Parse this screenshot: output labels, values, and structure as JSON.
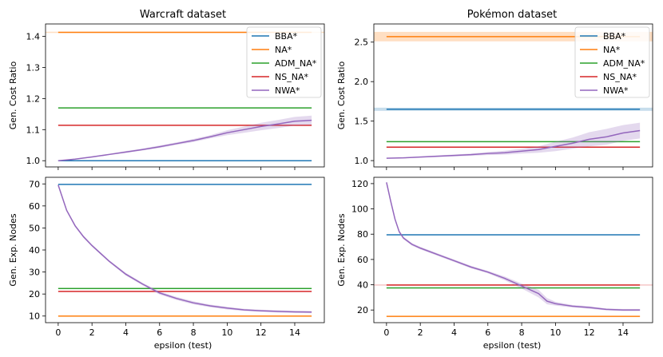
{
  "figure": {
    "left_title": "Warcraft dataset",
    "right_title": "Pokémon dataset",
    "xlabel": "epsilon (test)"
  },
  "series_colors": {
    "BBA*": "#1f77b4",
    "NA*": "#ff7f0e",
    "ADM_NA*": "#2ca02c",
    "NS_NA*": "#d62728",
    "NWA*": "#9467bd"
  },
  "chart_data": [
    {
      "id": "warcraft-cost",
      "type": "line",
      "title": "Warcraft dataset",
      "xlabel": "",
      "ylabel": "Gen. Cost Ratio",
      "xlim": [
        -0.75,
        15.75
      ],
      "ylim": [
        0.98,
        1.44
      ],
      "xticks": [
        0,
        2,
        4,
        6,
        8,
        10,
        12,
        14
      ],
      "xtick_labels_visible": false,
      "yticks": [
        1.0,
        1.1,
        1.2,
        1.3,
        1.4
      ],
      "ytick_labels": [
        "1.0",
        "1.1",
        "1.2",
        "1.3",
        "1.4"
      ],
      "legend": {
        "position": "top-right",
        "entries": [
          "BBA*",
          "NA*",
          "ADM_NA*",
          "NS_NA*",
          "NWA*"
        ]
      },
      "series": [
        {
          "name": "BBA*",
          "type": "constant",
          "value": 1.0,
          "band": 0.0
        },
        {
          "name": "NA*",
          "type": "constant",
          "value": 1.413,
          "band": 0.002
        },
        {
          "name": "ADM_NA*",
          "type": "constant",
          "value": 1.17,
          "band": 0.0
        },
        {
          "name": "NS_NA*",
          "type": "constant",
          "value": 1.114,
          "band": 0.0
        },
        {
          "name": "NWA*",
          "type": "curve",
          "x": [
            0,
            1,
            2,
            3,
            4,
            5,
            6,
            7,
            8,
            9,
            10,
            11,
            12,
            13,
            14,
            15
          ],
          "values": [
            1.0,
            1.005,
            1.012,
            1.02,
            1.028,
            1.036,
            1.045,
            1.055,
            1.065,
            1.077,
            1.09,
            1.1,
            1.11,
            1.118,
            1.127,
            1.13
          ],
          "band": [
            0.0,
            0.001,
            0.002,
            0.002,
            0.003,
            0.003,
            0.004,
            0.004,
            0.005,
            0.005,
            0.008,
            0.01,
            0.012,
            0.013,
            0.014,
            0.015
          ]
        }
      ]
    },
    {
      "id": "pokemon-cost",
      "type": "line",
      "title": "Pokémon dataset",
      "xlabel": "",
      "ylabel": "Gen. Cost Ratio",
      "xlim": [
        -0.75,
        15.75
      ],
      "ylim": [
        0.92,
        2.73
      ],
      "xticks": [
        0,
        2,
        4,
        6,
        8,
        10,
        12,
        14
      ],
      "xtick_labels_visible": false,
      "yticks": [
        1.0,
        1.5,
        2.0,
        2.5
      ],
      "ytick_labels": [
        "1.0",
        "1.5",
        "2.0",
        "2.5"
      ],
      "legend": {
        "position": "top-right",
        "entries": [
          "BBA*",
          "NA*",
          "ADM_NA*",
          "NS_NA*",
          "NWA*"
        ]
      },
      "series": [
        {
          "name": "BBA*",
          "type": "constant",
          "value": 1.65,
          "band": 0.02
        },
        {
          "name": "NA*",
          "type": "constant",
          "value": 2.57,
          "band": 0.06
        },
        {
          "name": "ADM_NA*",
          "type": "constant",
          "value": 1.24,
          "band": 0.0
        },
        {
          "name": "NS_NA*",
          "type": "constant",
          "value": 1.17,
          "band": 0.0
        },
        {
          "name": "NWA*",
          "type": "curve",
          "x": [
            0,
            1,
            2,
            3,
            4,
            5,
            6,
            7,
            8,
            9,
            10,
            11,
            12,
            13,
            14,
            15
          ],
          "values": [
            1.03,
            1.035,
            1.045,
            1.055,
            1.065,
            1.075,
            1.09,
            1.1,
            1.12,
            1.14,
            1.18,
            1.22,
            1.27,
            1.3,
            1.35,
            1.38
          ],
          "band": [
            0.0,
            0.005,
            0.008,
            0.01,
            0.012,
            0.015,
            0.02,
            0.025,
            0.03,
            0.04,
            0.06,
            0.07,
            0.09,
            0.1,
            0.1,
            0.1
          ]
        }
      ]
    },
    {
      "id": "warcraft-nodes",
      "type": "line",
      "title": "",
      "xlabel": "epsilon (test)",
      "ylabel": "Gen. Exp. Nodes",
      "xlim": [
        -0.75,
        15.75
      ],
      "ylim": [
        7,
        73
      ],
      "xticks": [
        0,
        2,
        4,
        6,
        8,
        10,
        12,
        14
      ],
      "xtick_labels_visible": true,
      "xtick_labels": [
        "0",
        "2",
        "4",
        "6",
        "8",
        "10",
        "12",
        "14"
      ],
      "yticks": [
        10,
        20,
        30,
        40,
        50,
        60,
        70
      ],
      "ytick_labels": [
        "10",
        "20",
        "30",
        "40",
        "50",
        "60",
        "70"
      ],
      "series": [
        {
          "name": "BBA*",
          "type": "constant",
          "value": 69.8,
          "band": 0.0
        },
        {
          "name": "NA*",
          "type": "constant",
          "value": 10.0,
          "band": 0.0
        },
        {
          "name": "ADM_NA*",
          "type": "constant",
          "value": 22.5,
          "band": 0.0
        },
        {
          "name": "NS_NA*",
          "type": "constant",
          "value": 21.2,
          "band": 0.0
        },
        {
          "name": "NWA*",
          "type": "curve",
          "x": [
            0,
            0.5,
            1,
            1.5,
            2,
            3,
            4,
            5,
            6,
            7,
            8,
            9,
            10,
            11,
            12,
            13,
            14,
            15
          ],
          "values": [
            69.5,
            58,
            51,
            46,
            42,
            35,
            29,
            24.5,
            20.5,
            18,
            16,
            14.6,
            13.6,
            12.8,
            12.4,
            12.1,
            11.9,
            11.8
          ],
          "band": [
            0.3,
            0.4,
            0.5,
            0.5,
            0.5,
            0.5,
            0.6,
            0.6,
            0.7,
            0.7,
            0.7,
            0.6,
            0.6,
            0.5,
            0.5,
            0.5,
            0.5,
            0.5
          ]
        }
      ]
    },
    {
      "id": "pokemon-nodes",
      "type": "line",
      "title": "",
      "xlabel": "epsilon (test)",
      "ylabel": "Gen. Exp. Nodes",
      "xlim": [
        -0.75,
        15.75
      ],
      "ylim": [
        10,
        125
      ],
      "xticks": [
        0,
        2,
        4,
        6,
        8,
        10,
        12,
        14
      ],
      "xtick_labels_visible": true,
      "xtick_labels": [
        "0",
        "2",
        "4",
        "6",
        "8",
        "10",
        "12",
        "14"
      ],
      "yticks": [
        20,
        40,
        60,
        80,
        100,
        120
      ],
      "ytick_labels": [
        "20",
        "40",
        "60",
        "80",
        "100",
        "120"
      ],
      "series": [
        {
          "name": "BBA*",
          "type": "constant",
          "value": 79.5,
          "band": 0.0
        },
        {
          "name": "NA*",
          "type": "constant",
          "value": 15.0,
          "band": 0.0
        },
        {
          "name": "ADM_NA*",
          "type": "constant",
          "value": 37.5,
          "band": 0.0
        },
        {
          "name": "NS_NA*",
          "type": "constant",
          "value": 39.8,
          "band": 0.5
        },
        {
          "name": "NWA*",
          "type": "curve",
          "x": [
            0,
            0.25,
            0.5,
            0.75,
            1,
            1.5,
            2,
            3,
            4,
            5,
            6,
            7,
            8,
            9,
            9.5,
            10,
            11,
            12,
            13,
            14,
            15
          ],
          "values": [
            121,
            106,
            92,
            82,
            77,
            72,
            69,
            64,
            59,
            54,
            50,
            45,
            39,
            33,
            27,
            25,
            23,
            22,
            20.5,
            20,
            20
          ],
          "band": [
            0.5,
            1,
            1,
            1,
            1,
            1,
            1,
            1,
            1,
            1,
            1,
            1.5,
            2,
            3,
            2.5,
            1.5,
            1,
            1,
            0.8,
            0.8,
            0.8
          ]
        }
      ]
    }
  ]
}
